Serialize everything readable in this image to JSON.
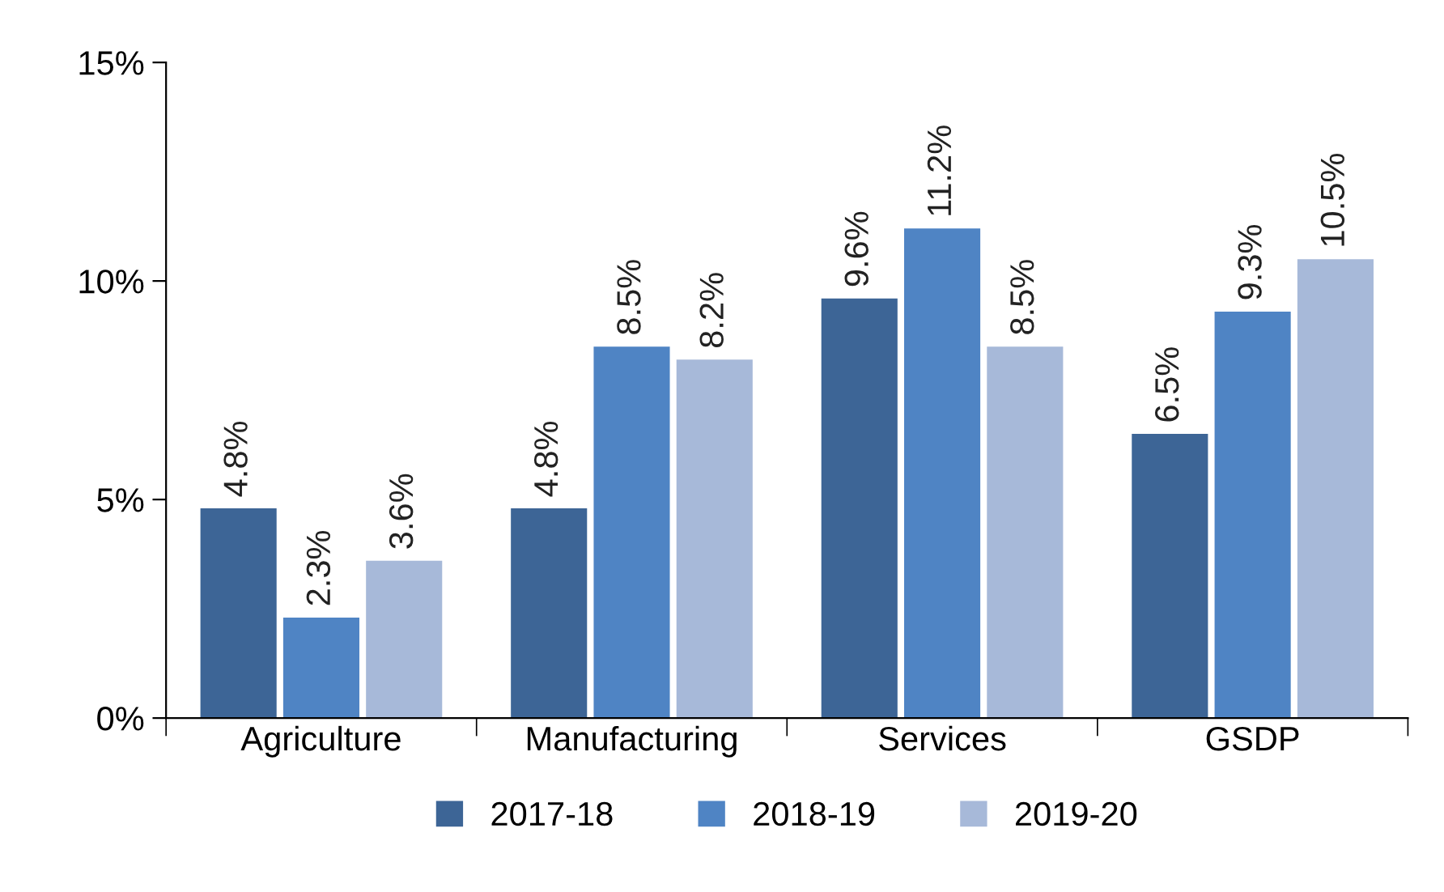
{
  "chart_data": {
    "type": "bar",
    "categories": [
      "Agriculture",
      "Manufacturing",
      "Services",
      "GSDP"
    ],
    "series": [
      {
        "name": "2017-18",
        "color": "#3d6596",
        "values": [
          4.8,
          4.8,
          9.6,
          6.5
        ],
        "value_labels": [
          "4.8%",
          "4.8%",
          "9.6%",
          "6.5%"
        ]
      },
      {
        "name": "2018-19",
        "color": "#4f84c4",
        "values": [
          2.3,
          8.5,
          11.2,
          9.3
        ],
        "value_labels": [
          "2.3%",
          "8.5%",
          "11.2%",
          "9.3%"
        ]
      },
      {
        "name": "2019-20",
        "color": "#a7b9d9",
        "values": [
          3.6,
          8.2,
          8.5,
          10.5
        ],
        "value_labels": [
          "3.6%",
          "8.2%",
          "8.5%",
          "10.5%"
        ]
      }
    ],
    "ylim": [
      0,
      15
    ],
    "yticks": [
      {
        "value": 0,
        "label": "0%"
      },
      {
        "value": 5,
        "label": "5%"
      },
      {
        "value": 10,
        "label": "10%"
      },
      {
        "value": 15,
        "label": "15%"
      }
    ],
    "grid": false,
    "legend": "bottom"
  }
}
